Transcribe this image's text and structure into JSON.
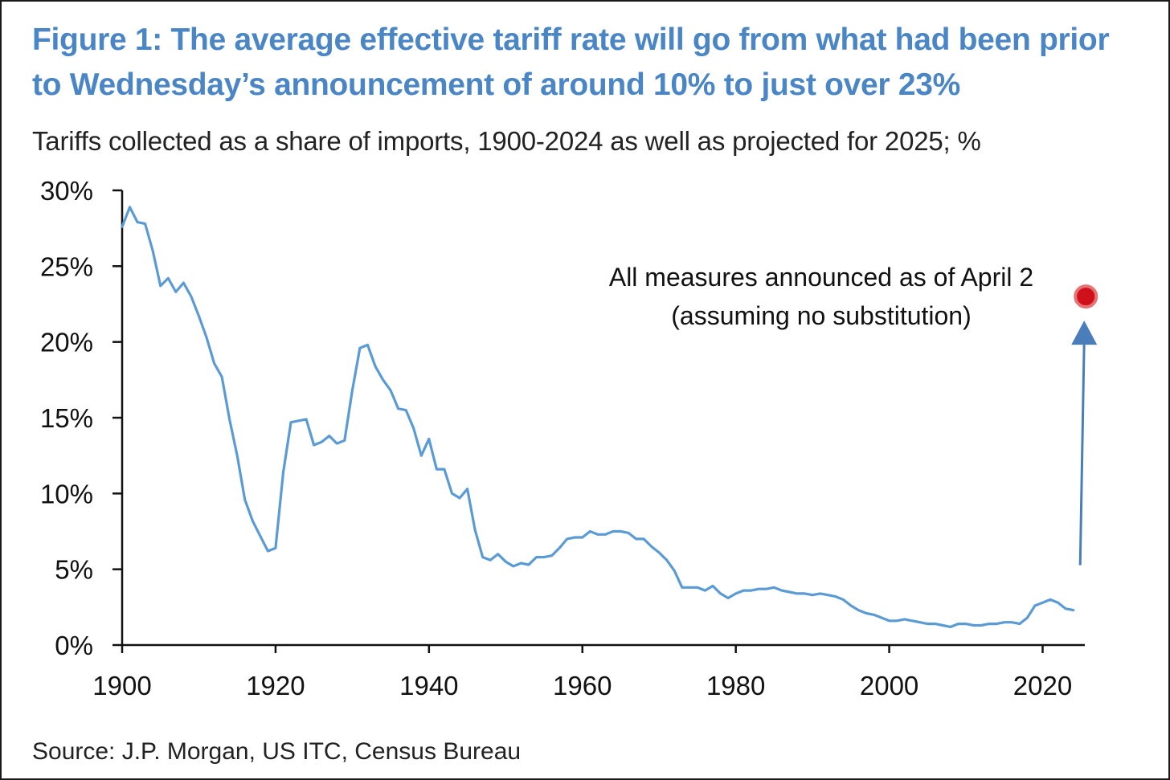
{
  "title_line1": "Figure 1: The average effective tariff rate will go from what had been prior",
  "title_line2": "to Wednesday’s announcement of around 10% to just over 23%",
  "subtitle": "Tariffs collected as a share of imports, 1900-2024 as well as projected for 2025; %",
  "source": "Source: J.P. Morgan, US ITC, Census Bureau",
  "colors": {
    "title": "#4a86c5",
    "line": "#5b9bd5",
    "arrow": "#4a7ebb",
    "marker": "#d0101a",
    "axis": "#111111"
  },
  "chart_data": {
    "type": "line",
    "title": "Figure 1: The average effective tariff rate will go from what had been prior to Wednesday’s announcement of around 10% to just over 23%",
    "subtitle": "Tariffs collected as a share of imports, 1900-2024 as well as projected for 2025; %",
    "xlabel": "",
    "ylabel": "",
    "xlim": [
      1900,
      2025.5
    ],
    "ylim": [
      0,
      30
    ],
    "x_ticks": [
      1900,
      1920,
      1940,
      1960,
      1980,
      2000,
      2020
    ],
    "x_tick_labels": [
      "1900",
      "1920",
      "1940",
      "1960",
      "1980",
      "2000",
      "2020"
    ],
    "y_ticks": [
      0,
      5,
      10,
      15,
      20,
      25,
      30
    ],
    "y_tick_labels": [
      "0%",
      "5%",
      "10%",
      "15%",
      "20%",
      "25%",
      "30%"
    ],
    "grid": false,
    "series": [
      {
        "x": [
          1900,
          1901,
          1902,
          1903,
          1904,
          1905,
          1906,
          1907,
          1908,
          1909,
          1910,
          1911,
          1912,
          1913,
          1914,
          1915,
          1916,
          1917,
          1918,
          1919,
          1920,
          1921,
          1922,
          1923,
          1924,
          1925,
          1926,
          1927,
          1928,
          1929,
          1930,
          1931,
          1932,
          1933,
          1934,
          1935,
          1936,
          1937,
          1938,
          1939,
          1940,
          1941,
          1942,
          1943,
          1944,
          1945,
          1946,
          1947,
          1948,
          1949,
          1950,
          1951,
          1952,
          1953,
          1954,
          1955,
          1956,
          1957,
          1958,
          1959,
          1960,
          1961,
          1962,
          1963,
          1964,
          1965,
          1966,
          1967,
          1968,
          1969,
          1970,
          1971,
          1972,
          1973,
          1974,
          1975,
          1976,
          1977,
          1978,
          1979,
          1980,
          1981,
          1982,
          1983,
          1984,
          1985,
          1986,
          1987,
          1988,
          1989,
          1990,
          1991,
          1992,
          1993,
          1994,
          1995,
          1996,
          1997,
          1998,
          1999,
          2000,
          2001,
          2002,
          2003,
          2004,
          2005,
          2006,
          2007,
          2008,
          2009,
          2010,
          2011,
          2012,
          2013,
          2014,
          2015,
          2016,
          2017,
          2018,
          2019,
          2020,
          2021,
          2022,
          2023,
          2024
        ],
        "values": [
          27.6,
          28.9,
          27.9,
          27.8,
          26.0,
          23.7,
          24.2,
          23.3,
          23.9,
          23.0,
          21.7,
          20.3,
          18.6,
          17.7,
          14.9,
          12.5,
          9.6,
          8.2,
          7.2,
          6.2,
          6.4,
          11.4,
          14.7,
          14.8,
          14.9,
          13.2,
          13.4,
          13.8,
          13.3,
          13.5,
          16.8,
          19.6,
          19.8,
          18.4,
          17.5,
          16.8,
          15.6,
          15.5,
          14.3,
          12.5,
          13.6,
          11.6,
          11.6,
          10.0,
          9.7,
          10.3,
          7.6,
          5.8,
          5.6,
          6.0,
          5.5,
          5.2,
          5.4,
          5.3,
          5.8,
          5.8,
          5.9,
          6.4,
          7.0,
          7.1,
          7.1,
          7.5,
          7.3,
          7.3,
          7.5,
          7.5,
          7.4,
          7.0,
          7.0,
          6.5,
          6.1,
          5.6,
          4.9,
          3.8,
          3.8,
          3.8,
          3.6,
          3.9,
          3.4,
          3.1,
          3.4,
          3.6,
          3.6,
          3.7,
          3.7,
          3.8,
          3.6,
          3.5,
          3.4,
          3.4,
          3.3,
          3.4,
          3.3,
          3.2,
          3.0,
          2.6,
          2.3,
          2.1,
          2.0,
          1.8,
          1.6,
          1.6,
          1.7,
          1.6,
          1.5,
          1.4,
          1.4,
          1.3,
          1.2,
          1.4,
          1.4,
          1.3,
          1.3,
          1.4,
          1.4,
          1.5,
          1.5,
          1.4,
          1.8,
          2.6,
          2.8,
          3.0,
          2.8,
          2.4,
          2.3
        ]
      }
    ],
    "projection": {
      "x": 2025,
      "value": 23.0,
      "label_line1": "All measures announced as of April 2",
      "label_line2": "(assuming no substitution)"
    }
  }
}
